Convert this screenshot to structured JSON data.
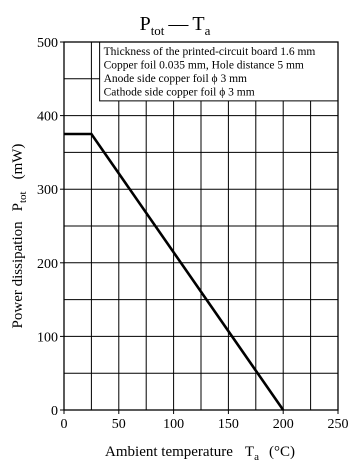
{
  "chart_data": {
    "type": "line",
    "title": {
      "main": "P",
      "main_sub": "tot",
      "dash": "—",
      "rhs": "T",
      "rhs_sub": "a"
    },
    "xlabel": {
      "text": "Ambient temperature",
      "symbol": "T",
      "symbol_sub": "a",
      "unit": "(°C)"
    },
    "ylabel": {
      "text": "Power dissipation",
      "symbol": "P",
      "symbol_sub": "tot",
      "unit": "(mW)"
    },
    "xlim": [
      0,
      250
    ],
    "ylim": [
      0,
      500
    ],
    "x_ticks": [
      0,
      50,
      100,
      150,
      200,
      250
    ],
    "y_ticks": [
      0,
      100,
      200,
      300,
      400,
      500
    ],
    "x_tick_labels": [
      "0",
      "50",
      "100",
      "150",
      "200",
      "250"
    ],
    "y_tick_labels": [
      "0",
      "100",
      "200",
      "300",
      "400",
      "500"
    ],
    "x_grid_step": 25,
    "y_grid_step": 50,
    "grid": true,
    "series": [
      {
        "x": [
          0,
          25,
          200
        ],
        "y": [
          375,
          375,
          0
        ]
      }
    ],
    "annotation_lines": [
      "Thickness of the printed-circuit board 1.6 mm",
      "Copper foil 0.035 mm, Hole distance 5 mm",
      "Anode side copper foil ϕ 3 mm",
      "Cathode side copper foil ϕ 3 mm"
    ],
    "annotation_placement": "top-right"
  }
}
